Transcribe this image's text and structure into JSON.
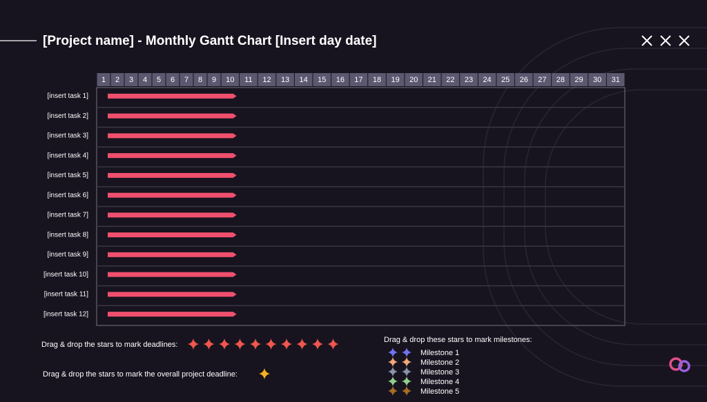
{
  "chart_data": {
    "type": "gantt",
    "title": "[Project name] - Monthly Gantt Chart [Insert day date]",
    "days": [
      1,
      2,
      3,
      4,
      5,
      6,
      7,
      8,
      9,
      10,
      11,
      12,
      13,
      14,
      15,
      16,
      17,
      18,
      19,
      20,
      21,
      22,
      23,
      24,
      25,
      26,
      27,
      28,
      29,
      30,
      31
    ],
    "color": "#f0506e",
    "tasks": [
      {
        "name": "[insert task 1]",
        "start": 1,
        "end": 10
      },
      {
        "name": "[insert task 2]",
        "start": 1,
        "end": 10
      },
      {
        "name": "[insert task 3]",
        "start": 1,
        "end": 10
      },
      {
        "name": "[insert task 4]",
        "start": 1,
        "end": 10
      },
      {
        "name": "[insert task 5]",
        "start": 1,
        "end": 10
      },
      {
        "name": "[insert task 6]",
        "start": 1,
        "end": 10
      },
      {
        "name": "[insert task 7]",
        "start": 1,
        "end": 10
      },
      {
        "name": "[insert task 8]",
        "start": 1,
        "end": 10
      },
      {
        "name": "[insert task 9]",
        "start": 1,
        "end": 10
      },
      {
        "name": "[insert task 10]",
        "start": 1,
        "end": 10
      },
      {
        "name": "[insert task 11]",
        "start": 1,
        "end": 10
      },
      {
        "name": "[insert task 12]",
        "start": 1,
        "end": 10
      }
    ]
  },
  "notes": {
    "deadlines": "Drag & drop the stars to mark deadlines:",
    "project_deadline": "Drag & drop the stars to mark the overall project deadline:",
    "milestones": "Drag & drop these stars to mark milestones:"
  },
  "milestones": [
    {
      "label": "Milestone 1",
      "color": "#7074f0"
    },
    {
      "label": "Milestone 2",
      "color": "#f2a878"
    },
    {
      "label": "Milestone 3",
      "color": "#8a92aa"
    },
    {
      "label": "Milestone 4",
      "color": "#92d08c"
    },
    {
      "label": "Milestone 5",
      "color": "#a86c24"
    }
  ]
}
